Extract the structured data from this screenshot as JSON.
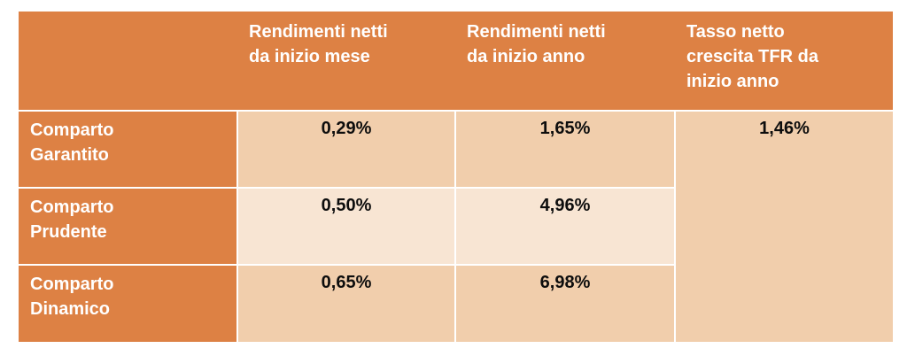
{
  "table": {
    "headers": {
      "col1": "",
      "col2": "Rendimenti netti\nda inizio mese",
      "col3": "Rendimenti netti\nda inizio anno",
      "col4": "Tasso netto\ncrescita TFR da\ninizio anno"
    },
    "rows": [
      {
        "label": "Comparto\nGarantito",
        "month": "0,29%",
        "year": "1,65%"
      },
      {
        "label": "Comparto\nPrudente",
        "month": "0,50%",
        "year": "4,96%"
      },
      {
        "label": "Comparto\nDinamico",
        "month": "0,65%",
        "year": "6,98%"
      }
    ],
    "tfr_value": "1,46%"
  },
  "colors": {
    "header_bg": "#DD8144",
    "row_label_bg": "#DD8144",
    "cell_bg": "#F1CEAC",
    "cell_bg_alt": "#F8E5D3",
    "header_text": "#FFFFFF",
    "cell_text": "#0D0D0D",
    "border": "#FFFFFF",
    "page_bg": "#FFFFFF"
  },
  "chart_data": {
    "type": "table",
    "title": "",
    "columns": [
      "",
      "Rendimenti netti da inizio mese",
      "Rendimenti netti da inizio anno",
      "Tasso netto crescita TFR da inizio anno"
    ],
    "rows": [
      [
        "Comparto Garantito",
        "0,29%",
        "1,65%",
        "1,46%"
      ],
      [
        "Comparto Prudente",
        "0,50%",
        "4,96%",
        ""
      ],
      [
        "Comparto Dinamico",
        "0,65%",
        "6,98%",
        ""
      ]
    ],
    "series": [
      {
        "name": "Rendimenti netti da inizio mese",
        "values": [
          0.29,
          0.5,
          0.65
        ]
      },
      {
        "name": "Rendimenti netti da inizio anno",
        "values": [
          1.65,
          4.96,
          6.98
        ]
      },
      {
        "name": "Tasso netto crescita TFR da inizio anno",
        "values": [
          1.46
        ]
      }
    ],
    "categories": [
      "Comparto Garantito",
      "Comparto Prudente",
      "Comparto Dinamico"
    ],
    "layout_hints": "Last column is a single cell merged (rowspan) across all three comparto rows; value unit is percent with Italian decimal comma."
  }
}
